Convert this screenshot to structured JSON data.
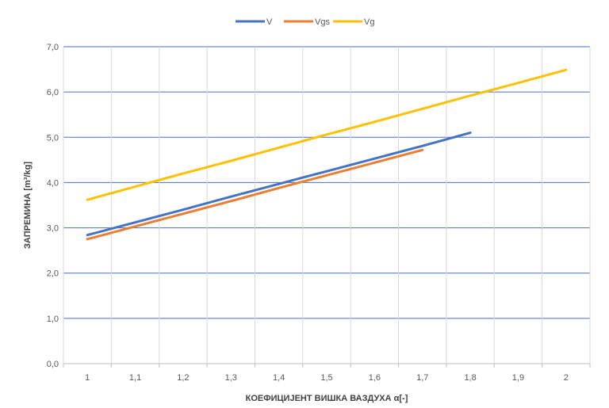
{
  "chart_data": {
    "type": "line",
    "title": "",
    "xlabel": "КОЕФИЦИЈЕНТ ВИШКА ВАЗДУХА α[-]",
    "ylabel": "ЗАПРЕМИНА  [m³/kg]",
    "categories": [
      "1",
      "1,1",
      "1,2",
      "1,3",
      "1,4",
      "1,5",
      "1,6",
      "1,7",
      "1,8",
      "1,9",
      "2"
    ],
    "y_ticks": [
      "0,0",
      "1,0",
      "2,0",
      "3,0",
      "4,0",
      "5,0",
      "6,0",
      "7,0"
    ],
    "ylim": [
      0,
      7
    ],
    "grid": true,
    "legend_position": "top",
    "series": [
      {
        "name": "V",
        "color": "#4472C4",
        "values": [
          2.84,
          3.12,
          3.4,
          3.69,
          3.97,
          4.25,
          4.53,
          4.81,
          5.1,
          null,
          null
        ]
      },
      {
        "name": "Vgs",
        "color": "#ED7D31",
        "values": [
          2.75,
          3.03,
          3.31,
          3.59,
          3.88,
          4.16,
          4.44,
          4.72,
          null,
          null,
          null
        ]
      },
      {
        "name": "Vg",
        "color": "#FFC000",
        "values": [
          3.62,
          3.91,
          4.2,
          4.48,
          4.77,
          5.06,
          5.34,
          5.63,
          5.92,
          6.2,
          6.49
        ]
      }
    ]
  }
}
